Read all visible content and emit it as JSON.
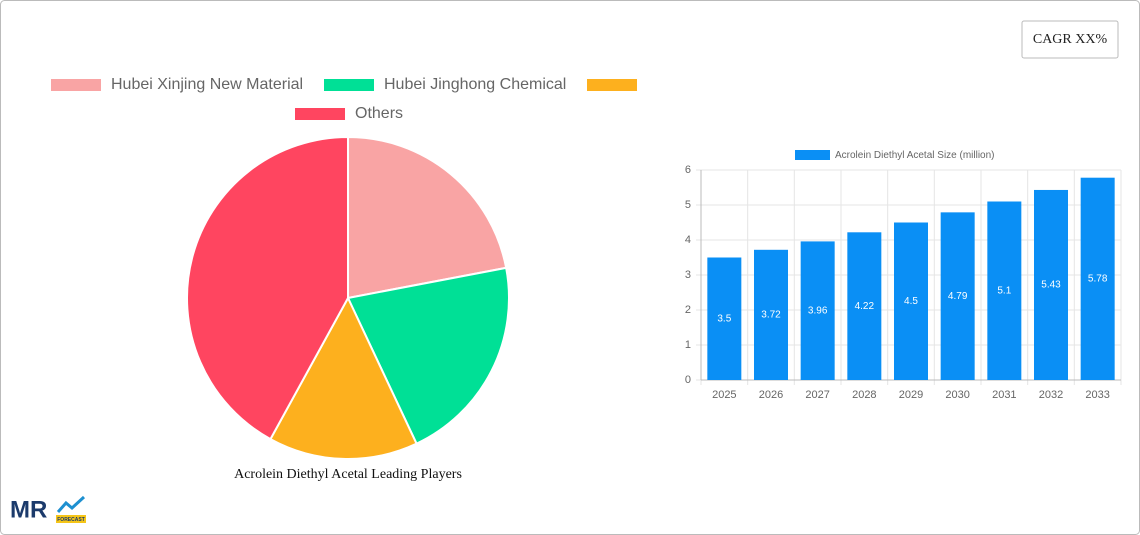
{
  "cagr_label": "CAGR XX%",
  "logo": {
    "text": "MR",
    "tagline": "FORECAST"
  },
  "chart_data": [
    {
      "type": "pie",
      "title": "Acrolein Diethyl Acetal Leading Players",
      "categories": [
        "Hubei Xinjing New Material",
        "Hubei Jinghong Chemical",
        null,
        "Others"
      ],
      "values": [
        22,
        21,
        15,
        42
      ],
      "colors": [
        "#f9a4a4",
        "#00e096",
        "#fdb01e",
        "#ff4560"
      ]
    },
    {
      "type": "bar",
      "categories": [
        "2025",
        "2026",
        "2027",
        "2028",
        "2029",
        "2030",
        "2031",
        "2032",
        "2033"
      ],
      "series": [
        {
          "name": "Acrolein Diethyl Acetal Size (million)",
          "color": "#0a8ff5",
          "values": [
            3.5,
            3.72,
            3.96,
            4.22,
            4.5,
            4.79,
            5.1,
            5.43,
            5.78
          ]
        }
      ],
      "ylim": [
        0,
        6
      ],
      "yticks": [
        0,
        1,
        2,
        3,
        4,
        5,
        6
      ],
      "grid": true
    }
  ]
}
